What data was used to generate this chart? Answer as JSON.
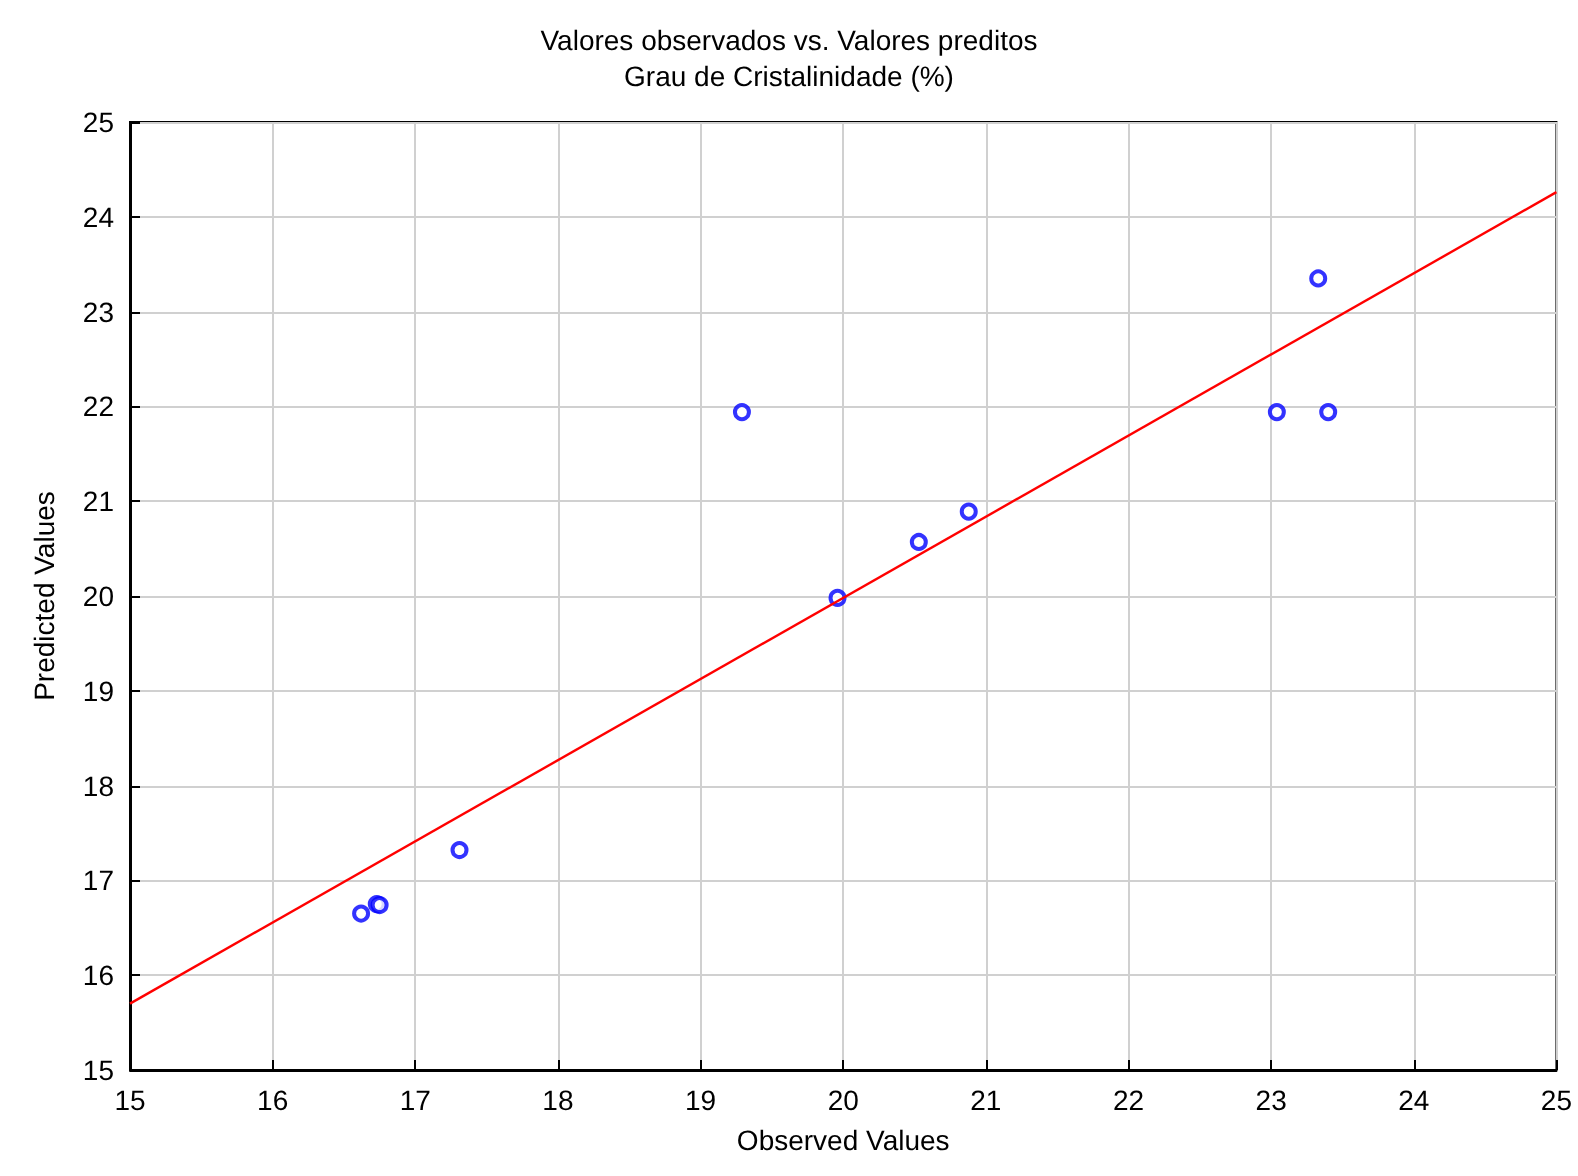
{
  "chart_data": {
    "type": "scatter",
    "title": "Valores observados vs. Valores preditos",
    "subtitle": "Grau de Cristalinidade (%)",
    "xlabel": "Observed Values",
    "ylabel": "Predicted Values",
    "xlim": [
      15,
      25
    ],
    "xticks": [
      15,
      16,
      17,
      18,
      19,
      20,
      21,
      22,
      23,
      24,
      25
    ],
    "ylim": [
      15,
      25
    ],
    "yticks": [
      15,
      16,
      17,
      18,
      19,
      20,
      21,
      22,
      23,
      24,
      25
    ],
    "grid": true,
    "marker": "circle",
    "series": [
      {
        "color": "#0000ff",
        "x": [
          16.62,
          16.73,
          16.75,
          17.31,
          19.29,
          19.96,
          20.53,
          20.88,
          23.04,
          23.33,
          23.4
        ],
        "values": [
          16.65,
          16.75,
          16.74,
          17.32,
          21.94,
          19.98,
          20.57,
          20.89,
          21.94,
          23.35,
          21.94
        ]
      },
      {
        "type": "line",
        "color": "#ff0000",
        "x": [
          15,
          25
        ],
        "values": [
          15.7,
          24.26
        ],
        "marker": "none",
        "line_style": "solid"
      }
    ]
  }
}
